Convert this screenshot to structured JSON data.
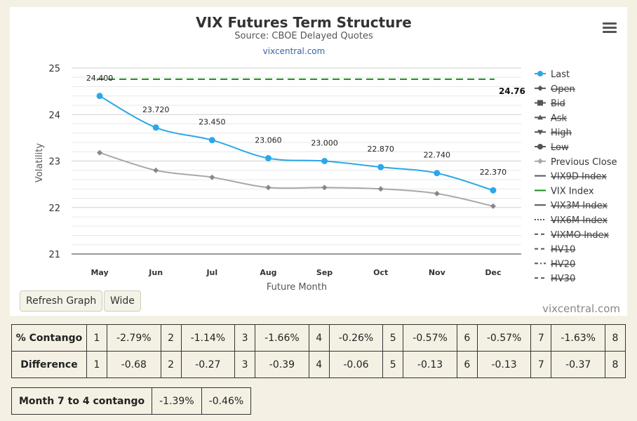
{
  "chart_data": {
    "type": "line",
    "title": "VIX Futures Term Structure",
    "subtitle": "Source: CBOE Delayed Quotes",
    "link": "vixcentral.com",
    "credit": "vixcentral.com",
    "xlabel": "Future Month",
    "ylabel": "Volatility",
    "categories": [
      "May",
      "Jun",
      "Jul",
      "Aug",
      "Sep",
      "Oct",
      "Nov",
      "Dec"
    ],
    "ylim": [
      21,
      25
    ],
    "yticks": [
      21,
      22,
      23,
      24,
      25
    ],
    "series": [
      {
        "name": "Last",
        "values": [
          24.4,
          23.72,
          23.45,
          23.06,
          23.0,
          22.87,
          22.74,
          22.37
        ],
        "labels": [
          "24.400",
          "23.720",
          "23.450",
          "23.060",
          "23.000",
          "22.870",
          "22.740",
          "22.370"
        ],
        "color": "#2ba8e8"
      },
      {
        "name": "Previous Close",
        "values": [
          23.18,
          22.8,
          22.65,
          22.43,
          22.43,
          22.4,
          22.3,
          22.03
        ],
        "color": "#a8a8a8"
      },
      {
        "name": "VIX Index",
        "values": [
          24.76,
          24.76,
          24.76,
          24.76,
          24.76,
          24.76,
          24.76,
          24.76
        ],
        "label": "24.76",
        "color": "#1a8a1a"
      }
    ],
    "legend": {
      "placement": "right",
      "items": [
        {
          "label": "Last",
          "visible": true,
          "icon": "circle-line",
          "color": "#2ba8e8"
        },
        {
          "label": "Open",
          "visible": false,
          "icon": "diamond-line",
          "color": "#555555"
        },
        {
          "label": "Bid",
          "visible": false,
          "icon": "square-line",
          "color": "#555555"
        },
        {
          "label": "Ask",
          "visible": false,
          "icon": "triangle-line",
          "color": "#555555"
        },
        {
          "label": "High",
          "visible": false,
          "icon": "triangle-down-line",
          "color": "#555555"
        },
        {
          "label": "Low",
          "visible": false,
          "icon": "circle-line",
          "color": "#555555"
        },
        {
          "label": "Previous Close",
          "visible": true,
          "icon": "diamond-line",
          "color": "#a8a8a8"
        },
        {
          "label": "VIX9D Index",
          "visible": false,
          "icon": "solid-line",
          "color": "#555555"
        },
        {
          "label": "VIX Index",
          "visible": true,
          "icon": "solid-line",
          "color": "#1a8a1a"
        },
        {
          "label": "VIX3M Index",
          "visible": false,
          "icon": "solid-line",
          "color": "#555555"
        },
        {
          "label": "VIX6M Index",
          "visible": false,
          "icon": "dotted-line",
          "color": "#555555"
        },
        {
          "label": "VIXMO Index",
          "visible": false,
          "icon": "dashed-line",
          "color": "#555555"
        },
        {
          "label": "HV10",
          "visible": false,
          "icon": "dashed-line",
          "color": "#555555"
        },
        {
          "label": "HV20",
          "visible": false,
          "icon": "dashdot-line",
          "color": "#555555"
        },
        {
          "label": "HV30",
          "visible": false,
          "icon": "dashed-line",
          "color": "#555555"
        }
      ]
    },
    "grid": true
  },
  "controls": {
    "refresh_label": "Refresh Graph",
    "wide_label": "Wide",
    "menu_icon": "hamburger-menu-icon"
  },
  "contango_table": {
    "rows": [
      {
        "header": "% Contango",
        "cells": [
          [
            "1",
            "-2.79%"
          ],
          [
            "2",
            "-1.14%"
          ],
          [
            "3",
            "-1.66%"
          ],
          [
            "4",
            "-0.26%"
          ],
          [
            "5",
            "-0.57%"
          ],
          [
            "6",
            "-0.57%"
          ],
          [
            "7",
            "-1.63%"
          ]
        ],
        "last": "8"
      },
      {
        "header": "Difference",
        "cells": [
          [
            "1",
            "-0.68"
          ],
          [
            "2",
            "-0.27"
          ],
          [
            "3",
            "-0.39"
          ],
          [
            "4",
            "-0.06"
          ],
          [
            "5",
            "-0.13"
          ],
          [
            "6",
            "-0.13"
          ],
          [
            "7",
            "-0.37"
          ]
        ],
        "last": "8"
      }
    ]
  },
  "summary_table": {
    "header": "Month 7 to 4 contango",
    "values": [
      "-1.39%",
      "-0.46%"
    ]
  }
}
